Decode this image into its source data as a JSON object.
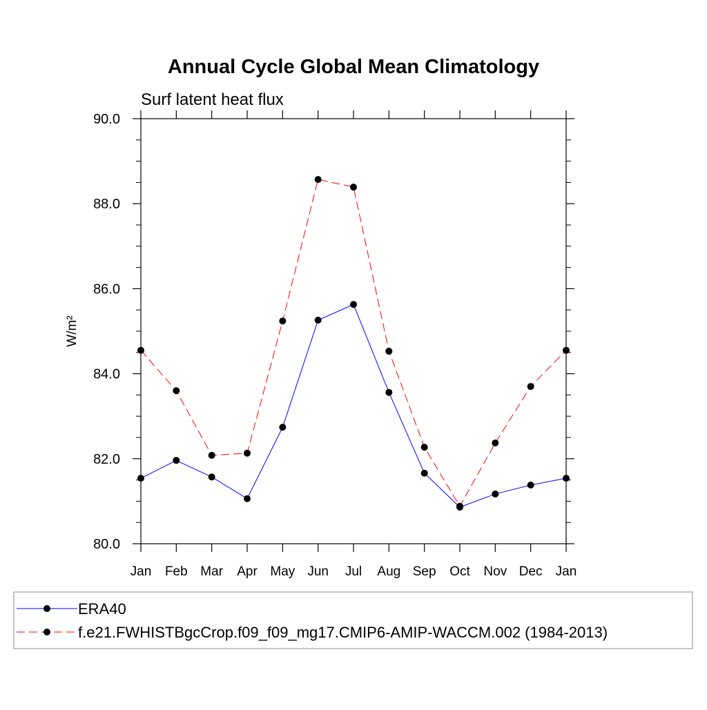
{
  "chart_data": {
    "type": "line",
    "title": "Annual Cycle Global Mean Climatology",
    "subtitle": "Surf latent heat flux",
    "ylabel": "W/m²",
    "categories": [
      "Jan",
      "Feb",
      "Mar",
      "Apr",
      "May",
      "Jun",
      "Jul",
      "Aug",
      "Sep",
      "Oct",
      "Nov",
      "Dec",
      "Jan"
    ],
    "series": [
      {
        "name": "ERA40",
        "color": "#0000ff",
        "dash": false,
        "values": [
          81.54,
          81.96,
          81.57,
          81.06,
          82.74,
          85.26,
          85.63,
          83.56,
          81.66,
          80.86,
          81.17,
          81.38,
          81.54
        ]
      },
      {
        "name": "f.e21.FWHISTBgcCrop.f09_f09_mg17.CMIP6-AMIP-WACCM.002 (1984-2013)",
        "color": "#ff0000",
        "dash": true,
        "values": [
          84.55,
          83.6,
          82.08,
          82.13,
          85.24,
          88.57,
          88.39,
          84.53,
          82.27,
          80.88,
          82.37,
          83.7,
          84.55
        ]
      }
    ],
    "ylim": [
      80,
      90
    ],
    "yticks": [
      {
        "value": 80,
        "label": "80.0"
      },
      {
        "value": 82,
        "label": "82.0"
      },
      {
        "value": 84,
        "label": "84.0"
      },
      {
        "value": 86,
        "label": "86.0"
      },
      {
        "value": 88,
        "label": "88.0"
      },
      {
        "value": 90,
        "label": "90.0"
      }
    ],
    "yminorticks": [
      80.5,
      81,
      81.5,
      82.5,
      83,
      83.5,
      84.5,
      85,
      85.5,
      86.5,
      87,
      87.5,
      88.5,
      89,
      89.5
    ]
  }
}
